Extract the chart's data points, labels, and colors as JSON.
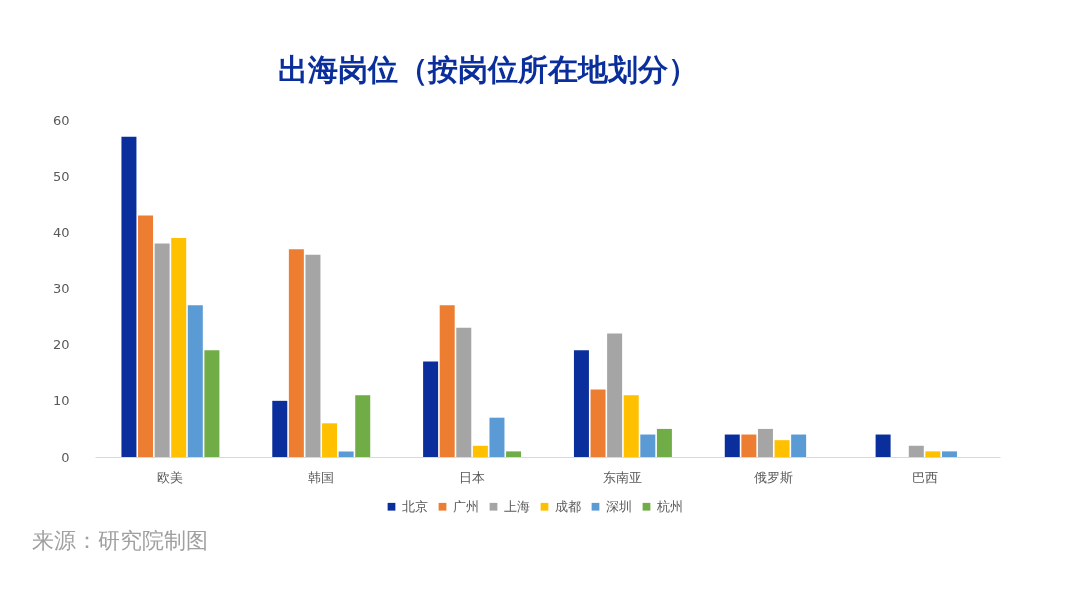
{
  "chart_data": {
    "type": "bar",
    "title": "出海岗位（按岗位所在地划分）",
    "categories": [
      "欧美",
      "韩国",
      "日本",
      "东南亚",
      "俄罗斯",
      "巴西"
    ],
    "series": [
      {
        "name": "北京",
        "color": "#0a2f9c",
        "values": [
          57,
          10,
          17,
          19,
          4,
          4
        ]
      },
      {
        "name": "广州",
        "color": "#ed7d31",
        "values": [
          43,
          37,
          27,
          12,
          4,
          0
        ]
      },
      {
        "name": "上海",
        "color": "#a5a5a5",
        "values": [
          38,
          36,
          23,
          22,
          5,
          2
        ]
      },
      {
        "name": "成都",
        "color": "#ffc000",
        "values": [
          39,
          6,
          2,
          11,
          3,
          1
        ]
      },
      {
        "name": "深圳",
        "color": "#5b9bd5",
        "values": [
          27,
          1,
          7,
          4,
          4,
          1
        ]
      },
      {
        "name": "杭州",
        "color": "#70ad47",
        "values": [
          19,
          11,
          1,
          5,
          0,
          0
        ]
      }
    ],
    "ylim": [
      0,
      60
    ],
    "yticks": [
      0,
      10,
      20,
      30,
      40,
      50,
      60
    ],
    "grid": false,
    "legend": "bottom",
    "annotations": [
      "来源：研究院制图"
    ]
  }
}
